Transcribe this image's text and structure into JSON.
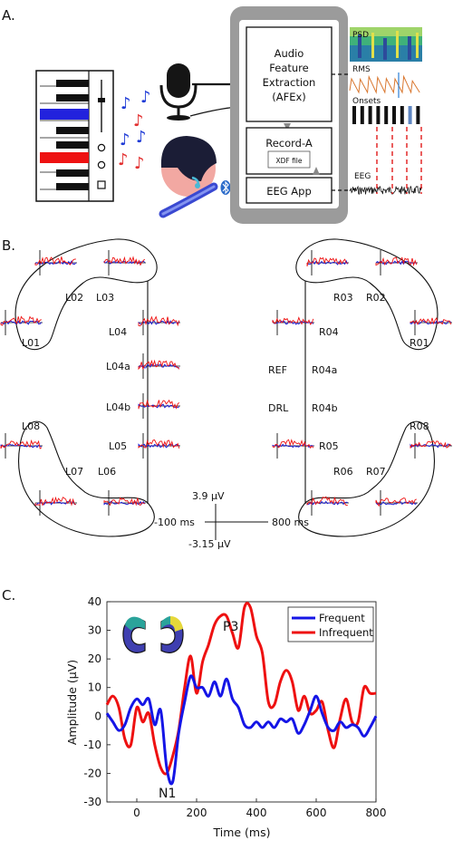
{
  "panel_a": {
    "label": "A.",
    "afex_lines": [
      "Audio",
      "Feature",
      "Extraction",
      "(AFEx)"
    ],
    "record_label": "Record-A",
    "xdf_label": "XDF file",
    "eeg_app_label": "EEG App",
    "feature_labels": {
      "psd": "PSD",
      "rms": "RMS",
      "onsets": "Onsets",
      "eeg": "EEG"
    },
    "bluetooth_icon": "bluetooth-icon",
    "colors": {
      "note_blue": "#1f3bd6",
      "note_red": "#e23030",
      "key_blue": "#2222dd",
      "key_red": "#ee1111",
      "phone": "#999999"
    }
  },
  "panel_b": {
    "label": "B.",
    "left_channels": [
      "L01",
      "L02",
      "L03",
      "L04",
      "L04a",
      "L04b",
      "L05",
      "L06",
      "L07",
      "L08"
    ],
    "right_channels": [
      "R01",
      "R02",
      "R03",
      "R04",
      "R04a",
      "R04b",
      "R05",
      "R06",
      "R07",
      "R08"
    ],
    "ref_labels": [
      "REF",
      "DRL"
    ],
    "scale": {
      "top": "3.9 µV",
      "bottom": "-3.15 µV",
      "left": "-100 ms",
      "right": "800 ms"
    },
    "colors": {
      "frequent": "#1a1ad8",
      "infrequent": "#ee1111"
    }
  },
  "panel_c": {
    "label": "C.",
    "peak_labels": [
      "P3",
      "N1"
    ]
  },
  "chart_data": {
    "type": "line",
    "xlabel": "Time (ms)",
    "ylabel": "Amplitude (μV)",
    "xlim": [
      -100,
      800
    ],
    "ylim": [
      -30,
      40
    ],
    "xticks": [
      0,
      200,
      400,
      600,
      800
    ],
    "yticks": [
      40,
      30,
      20,
      10,
      0,
      -10,
      -20,
      -30
    ],
    "legend_position": "top-right",
    "series": [
      {
        "name": "Frequent",
        "color": "#1515e6",
        "x": [
          -100,
          -80,
          -60,
          -40,
          -20,
          0,
          20,
          40,
          60,
          80,
          100,
          120,
          140,
          160,
          180,
          200,
          220,
          240,
          260,
          280,
          300,
          320,
          340,
          360,
          380,
          400,
          420,
          440,
          460,
          480,
          500,
          520,
          540,
          560,
          580,
          600,
          620,
          640,
          660,
          680,
          700,
          720,
          740,
          760,
          780,
          800
        ],
        "y": [
          1,
          -2,
          -5,
          -3,
          3,
          6,
          4,
          6,
          -3,
          2,
          -18,
          -23,
          -6,
          5,
          14,
          10,
          10,
          7,
          12,
          7,
          13,
          6,
          3,
          -3,
          -4,
          -2,
          -4,
          -2,
          -4,
          -1,
          -2,
          -1,
          -6,
          -3,
          2,
          7,
          1,
          -4,
          -5,
          -2,
          -4,
          -3,
          -4,
          -7,
          -4,
          0
        ]
      },
      {
        "name": "Infrequent",
        "color": "#ee1111",
        "x": [
          -100,
          -80,
          -60,
          -40,
          -20,
          0,
          20,
          40,
          60,
          80,
          100,
          120,
          140,
          160,
          180,
          200,
          220,
          240,
          260,
          280,
          300,
          320,
          340,
          360,
          380,
          400,
          420,
          440,
          460,
          480,
          500,
          520,
          540,
          560,
          580,
          600,
          620,
          640,
          660,
          680,
          700,
          720,
          740,
          760,
          780,
          800
        ],
        "y": [
          4,
          7,
          3,
          -8,
          -10,
          3,
          -2,
          1,
          -10,
          -18,
          -20,
          -14,
          -5,
          10,
          21,
          8,
          19,
          25,
          32,
          35,
          35,
          29,
          24,
          38,
          38,
          28,
          22,
          5,
          4,
          12,
          16,
          12,
          2,
          7,
          1,
          2,
          5,
          -5,
          -11,
          -1,
          6,
          -2,
          -2,
          10,
          8,
          8
        ]
      }
    ]
  }
}
